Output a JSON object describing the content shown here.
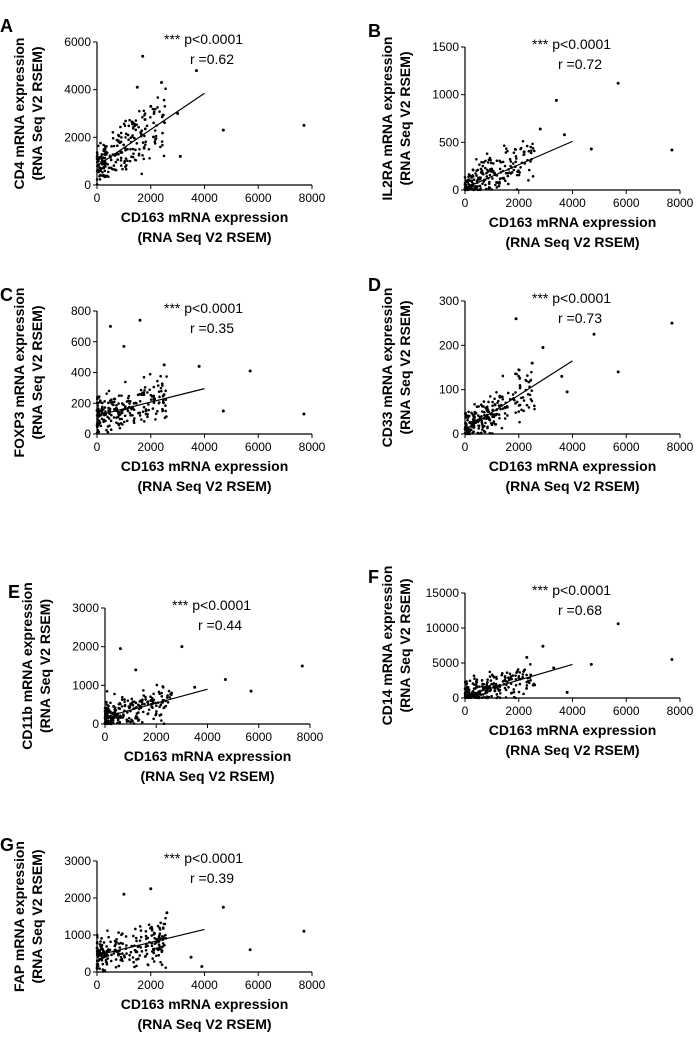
{
  "figure": {
    "x_title_line1": "CD163 mRNA expression",
    "x_title_line2": "(RNA Seq V2 RSEM)",
    "y_title_line2": "(RNA Seq V2 RSEM)",
    "significance": "*** p<0.0001"
  },
  "chart_data": [
    {
      "type": "scatter",
      "panel": "A",
      "ylabel": "CD4 mRNA expression",
      "r_text": "r =0.62",
      "xlim": [
        0,
        8000
      ],
      "xticks": [
        0,
        2000,
        4000,
        6000,
        8000
      ],
      "ylim": [
        0,
        6000
      ],
      "yticks": [
        0,
        2000,
        4000,
        6000
      ],
      "fit": {
        "x": [
          0,
          4000
        ],
        "y": [
          800,
          3850
        ]
      },
      "outliers": [
        [
          1700,
          5400
        ],
        [
          1500,
          4100
        ],
        [
          2400,
          4300
        ],
        [
          3700,
          4800
        ],
        [
          4700,
          2300
        ],
        [
          7700,
          2500
        ],
        [
          3100,
          1200
        ],
        [
          2000,
          3300
        ],
        [
          3000,
          3000
        ]
      ]
    },
    {
      "type": "scatter",
      "panel": "B",
      "ylabel": "IL2RA mRNA expression",
      "r_text": "r =0.72",
      "xlim": [
        0,
        8000
      ],
      "xticks": [
        0,
        2000,
        4000,
        6000,
        8000
      ],
      "ylim": [
        0,
        1500
      ],
      "yticks": [
        0,
        500,
        1000,
        1500
      ],
      "fit": {
        "x": [
          0,
          4000
        ],
        "y": [
          20,
          510
        ]
      },
      "outliers": [
        [
          5700,
          1120
        ],
        [
          3400,
          940
        ],
        [
          4700,
          430
        ],
        [
          7700,
          420
        ],
        [
          2800,
          640
        ],
        [
          3700,
          580
        ],
        [
          2200,
          400
        ]
      ]
    },
    {
      "type": "scatter",
      "panel": "C",
      "ylabel": "FOXP3 mRNA expression",
      "r_text": "r =0.35",
      "xlim": [
        0,
        8000
      ],
      "xticks": [
        0,
        2000,
        4000,
        6000,
        8000
      ],
      "ylim": [
        0,
        800
      ],
      "yticks": [
        0,
        200,
        400,
        600,
        800
      ],
      "fit": {
        "x": [
          0,
          4000
        ],
        "y": [
          120,
          295
        ]
      },
      "outliers": [
        [
          1600,
          740
        ],
        [
          500,
          700
        ],
        [
          5700,
          410
        ],
        [
          7700,
          130
        ],
        [
          4700,
          150
        ],
        [
          3800,
          440
        ],
        [
          1000,
          570
        ],
        [
          2500,
          450
        ]
      ]
    },
    {
      "type": "scatter",
      "panel": "D",
      "ylabel": "CD33 mRNA expression",
      "r_text": "r =0.73",
      "xlim": [
        0,
        8000
      ],
      "xticks": [
        0,
        2000,
        4000,
        6000,
        8000
      ],
      "ylim": [
        0,
        300
      ],
      "yticks": [
        0,
        100,
        200,
        300
      ],
      "fit": {
        "x": [
          0,
          4000
        ],
        "y": [
          10,
          165
        ]
      },
      "outliers": [
        [
          7700,
          250
        ],
        [
          4800,
          225
        ],
        [
          5700,
          140
        ],
        [
          1900,
          260
        ],
        [
          2900,
          195
        ],
        [
          3600,
          130
        ],
        [
          2500,
          160
        ],
        [
          3800,
          95
        ]
      ]
    },
    {
      "type": "scatter",
      "panel": "E",
      "ylabel": "CD11b mRNA expression",
      "r_text": "r =0.44",
      "xlim": [
        0,
        8000
      ],
      "xticks": [
        0,
        2000,
        4000,
        6000,
        8000
      ],
      "ylim": [
        0,
        3000
      ],
      "yticks": [
        0,
        1000,
        2000,
        3000
      ],
      "fit": {
        "x": [
          0,
          4000
        ],
        "y": [
          180,
          900
        ]
      },
      "outliers": [
        [
          3000,
          2000
        ],
        [
          600,
          1950
        ],
        [
          7700,
          1500
        ],
        [
          4700,
          1150
        ],
        [
          5700,
          850
        ],
        [
          2600,
          800
        ],
        [
          1200,
          1400
        ],
        [
          3500,
          950
        ]
      ]
    },
    {
      "type": "scatter",
      "panel": "F",
      "ylabel": "CD14 mRNA expression",
      "r_text": "r =0.68",
      "xlim": [
        0,
        8000
      ],
      "xticks": [
        0,
        2000,
        4000,
        6000,
        8000
      ],
      "ylim": [
        0,
        15000
      ],
      "yticks": [
        0,
        5000,
        10000,
        15000
      ],
      "fit": {
        "x": [
          0,
          4000
        ],
        "y": [
          300,
          4800
        ]
      },
      "outliers": [
        [
          5700,
          10600
        ],
        [
          7700,
          5500
        ],
        [
          4700,
          4800
        ],
        [
          2900,
          7400
        ],
        [
          3800,
          800
        ],
        [
          2300,
          5800
        ],
        [
          3300,
          4300
        ]
      ]
    },
    {
      "type": "scatter",
      "panel": "G",
      "ylabel": "FAP mRNA expression",
      "r_text": "r =0.39",
      "xlim": [
        0,
        8000
      ],
      "xticks": [
        0,
        2000,
        4000,
        6000,
        8000
      ],
      "ylim": [
        0,
        3000
      ],
      "yticks": [
        0,
        1000,
        2000,
        3000
      ],
      "fit": {
        "x": [
          0,
          4000
        ],
        "y": [
          450,
          1150
        ]
      },
      "outliers": [
        [
          4700,
          1750
        ],
        [
          7700,
          1100
        ],
        [
          5700,
          600
        ],
        [
          2000,
          2250
        ],
        [
          1000,
          2100
        ],
        [
          3500,
          400
        ],
        [
          3900,
          150
        ],
        [
          2600,
          1600
        ]
      ]
    }
  ]
}
